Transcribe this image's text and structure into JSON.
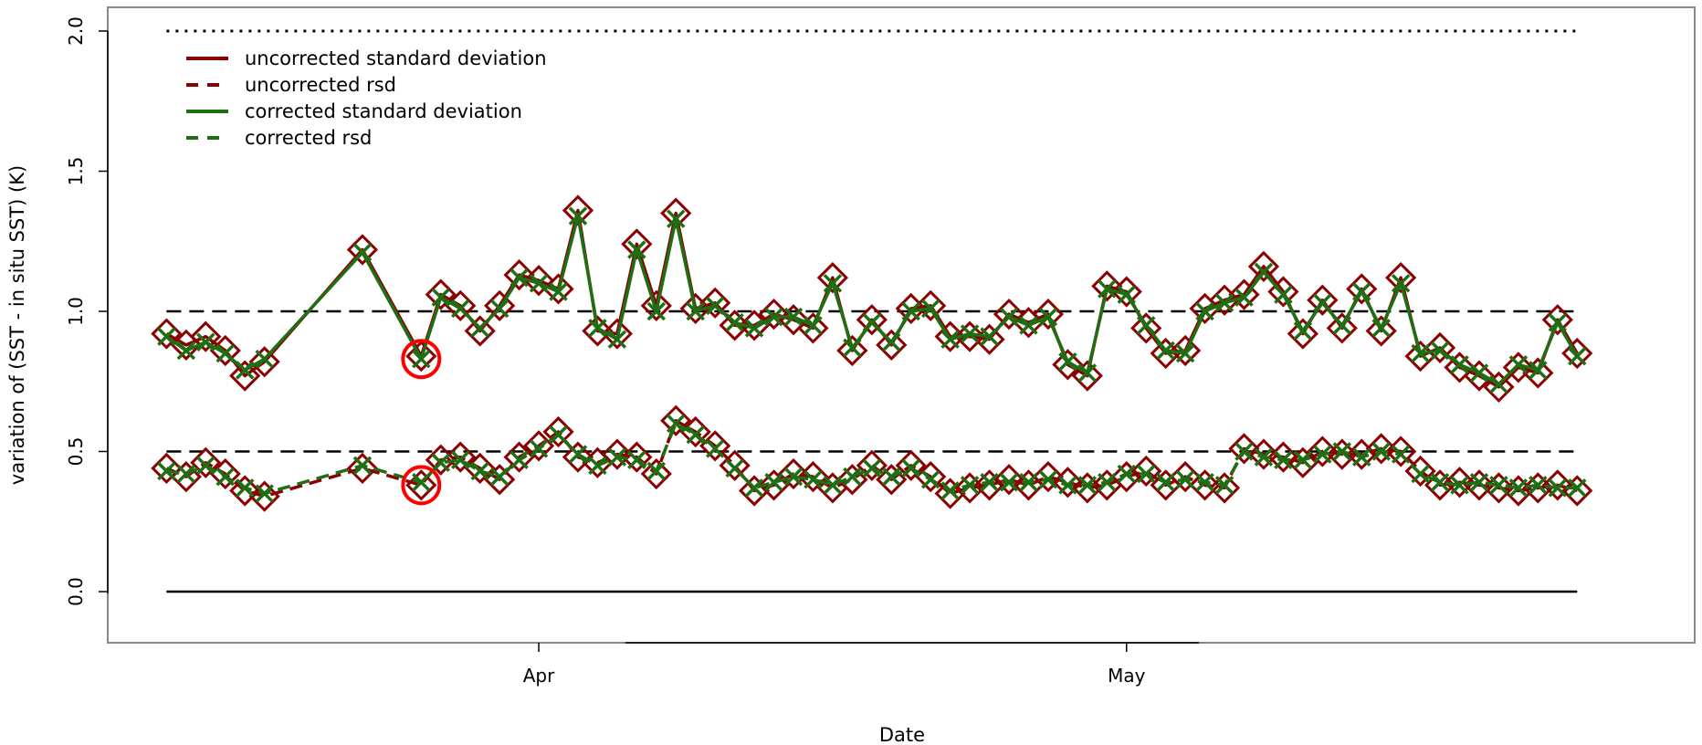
{
  "chart_data": {
    "type": "line",
    "title": "",
    "xlabel": "Date",
    "ylabel": "variation of (SST - in situ SST) (K)",
    "x_axis": {
      "min": "2012-03-10",
      "max": "2012-05-30",
      "ticks": [
        {
          "date": "2012-04-01",
          "label": "Apr"
        },
        {
          "date": "2012-05-01",
          "label": "May"
        }
      ]
    },
    "ylim": [
      -0.18,
      2.1
    ],
    "y_ticks": [
      {
        "value": 0.0,
        "label": "0.0"
      },
      {
        "value": 0.5,
        "label": "0.5"
      },
      {
        "value": 1.0,
        "label": "1.0"
      },
      {
        "value": 1.5,
        "label": "1.5"
      },
      {
        "value": 2.0,
        "label": "2.0"
      }
    ],
    "grid": false,
    "legend_position": "top-left",
    "reference_lines": [
      {
        "y": 2.0,
        "style": "dotted",
        "color": "#000000"
      },
      {
        "y": 1.0,
        "style": "dashed",
        "color": "#000000"
      },
      {
        "y": 0.5,
        "style": "dashed",
        "color": "#000000"
      },
      {
        "y": 0.0,
        "style": "solid",
        "color": "#000000"
      }
    ],
    "x": [
      "2012-03-13",
      "2012-03-14",
      "2012-03-15",
      "2012-03-16",
      "2012-03-17",
      "2012-03-18",
      "2012-03-23",
      "2012-03-26",
      "2012-03-27",
      "2012-03-28",
      "2012-03-29",
      "2012-03-30",
      "2012-03-31",
      "2012-04-01",
      "2012-04-02",
      "2012-04-03",
      "2012-04-04",
      "2012-04-05",
      "2012-04-06",
      "2012-04-07",
      "2012-04-08",
      "2012-04-09",
      "2012-04-10",
      "2012-04-11",
      "2012-04-12",
      "2012-04-13",
      "2012-04-14",
      "2012-04-15",
      "2012-04-16",
      "2012-04-17",
      "2012-04-18",
      "2012-04-19",
      "2012-04-20",
      "2012-04-21",
      "2012-04-22",
      "2012-04-23",
      "2012-04-24",
      "2012-04-25",
      "2012-04-26",
      "2012-04-27",
      "2012-04-28",
      "2012-04-29",
      "2012-04-30",
      "2012-05-01",
      "2012-05-02",
      "2012-05-03",
      "2012-05-04",
      "2012-05-05",
      "2012-05-06",
      "2012-05-07",
      "2012-05-08",
      "2012-05-09",
      "2012-05-10",
      "2012-05-11",
      "2012-05-12",
      "2012-05-13",
      "2012-05-14",
      "2012-05-15",
      "2012-05-16",
      "2012-05-17",
      "2012-05-18",
      "2012-05-19",
      "2012-05-20",
      "2012-05-21",
      "2012-05-22",
      "2012-05-23",
      "2012-05-24"
    ],
    "series": [
      {
        "name": "uncorrected standard deviation",
        "color": "#8B0000",
        "dash": "solid",
        "marker": "diamond",
        "values": [
          0.92,
          0.88,
          0.91,
          0.86,
          0.77,
          0.82,
          1.22,
          0.84,
          1.06,
          1.02,
          0.93,
          1.02,
          1.13,
          1.11,
          1.08,
          1.36,
          0.93,
          0.92,
          1.24,
          1.02,
          1.35,
          1.01,
          1.03,
          0.95,
          0.95,
          0.99,
          0.97,
          0.94,
          1.12,
          0.86,
          0.97,
          0.88,
          1.01,
          1.02,
          0.91,
          0.91,
          0.9,
          0.99,
          0.96,
          0.99,
          0.81,
          0.77,
          1.09,
          1.07,
          0.94,
          0.85,
          0.86,
          1.01,
          1.04,
          1.06,
          1.16,
          1.07,
          0.92,
          1.04,
          0.94,
          1.08,
          0.93,
          1.12,
          0.84,
          0.87,
          0.8,
          0.77,
          0.73,
          0.8,
          0.78,
          0.97,
          0.85
        ]
      },
      {
        "name": "uncorrected rsd",
        "color": "#8B0000",
        "dash": "dashed",
        "marker": "diamond",
        "values": [
          0.44,
          0.41,
          0.46,
          0.42,
          0.36,
          0.34,
          0.44,
          0.38,
          0.47,
          0.48,
          0.44,
          0.4,
          0.48,
          0.52,
          0.57,
          0.48,
          0.46,
          0.49,
          0.48,
          0.42,
          0.61,
          0.57,
          0.52,
          0.45,
          0.36,
          0.38,
          0.42,
          0.41,
          0.37,
          0.4,
          0.45,
          0.4,
          0.45,
          0.41,
          0.35,
          0.37,
          0.38,
          0.4,
          0.38,
          0.41,
          0.39,
          0.37,
          0.38,
          0.41,
          0.43,
          0.38,
          0.41,
          0.38,
          0.37,
          0.51,
          0.49,
          0.48,
          0.46,
          0.5,
          0.49,
          0.49,
          0.51,
          0.5,
          0.43,
          0.38,
          0.39,
          0.38,
          0.37,
          0.36,
          0.37,
          0.38,
          0.36
        ]
      },
      {
        "name": "corrected standard deviation",
        "color": "#1F6E14",
        "dash": "solid",
        "marker": "x",
        "values": [
          0.91,
          0.86,
          0.89,
          0.85,
          0.79,
          0.83,
          1.21,
          0.83,
          1.05,
          1.01,
          0.94,
          1.01,
          1.12,
          1.1,
          1.07,
          1.34,
          0.94,
          0.9,
          1.22,
          1.0,
          1.33,
          1.0,
          1.02,
          0.96,
          0.94,
          0.98,
          0.98,
          0.95,
          1.1,
          0.87,
          0.96,
          0.89,
          1.0,
          1.01,
          0.9,
          0.92,
          0.91,
          0.98,
          0.95,
          0.98,
          0.82,
          0.78,
          1.08,
          1.06,
          0.95,
          0.86,
          0.85,
          1.0,
          1.03,
          1.05,
          1.14,
          1.06,
          0.93,
          1.03,
          0.95,
          1.07,
          0.94,
          1.1,
          0.85,
          0.86,
          0.81,
          0.78,
          0.74,
          0.81,
          0.79,
          0.96,
          0.84
        ]
      },
      {
        "name": "corrected rsd",
        "color": "#1F6E14",
        "dash": "dashed",
        "marker": "x",
        "values": [
          0.43,
          0.42,
          0.45,
          0.41,
          0.37,
          0.35,
          0.45,
          0.39,
          0.46,
          0.47,
          0.43,
          0.41,
          0.47,
          0.51,
          0.56,
          0.49,
          0.45,
          0.48,
          0.47,
          0.43,
          0.6,
          0.56,
          0.51,
          0.44,
          0.37,
          0.39,
          0.41,
          0.4,
          0.38,
          0.41,
          0.44,
          0.41,
          0.44,
          0.4,
          0.36,
          0.38,
          0.39,
          0.39,
          0.39,
          0.4,
          0.38,
          0.38,
          0.39,
          0.42,
          0.42,
          0.39,
          0.4,
          0.39,
          0.38,
          0.5,
          0.48,
          0.47,
          0.47,
          0.49,
          0.5,
          0.48,
          0.5,
          0.49,
          0.42,
          0.39,
          0.38,
          0.39,
          0.38,
          0.37,
          0.38,
          0.37,
          0.37
        ]
      }
    ],
    "highlights": [
      {
        "x": "2012-03-26",
        "y": 0.83,
        "color": "#FF0000",
        "shape": "circle"
      },
      {
        "x": "2012-03-26",
        "y": 0.38,
        "color": "#FF0000",
        "shape": "circle"
      }
    ]
  }
}
